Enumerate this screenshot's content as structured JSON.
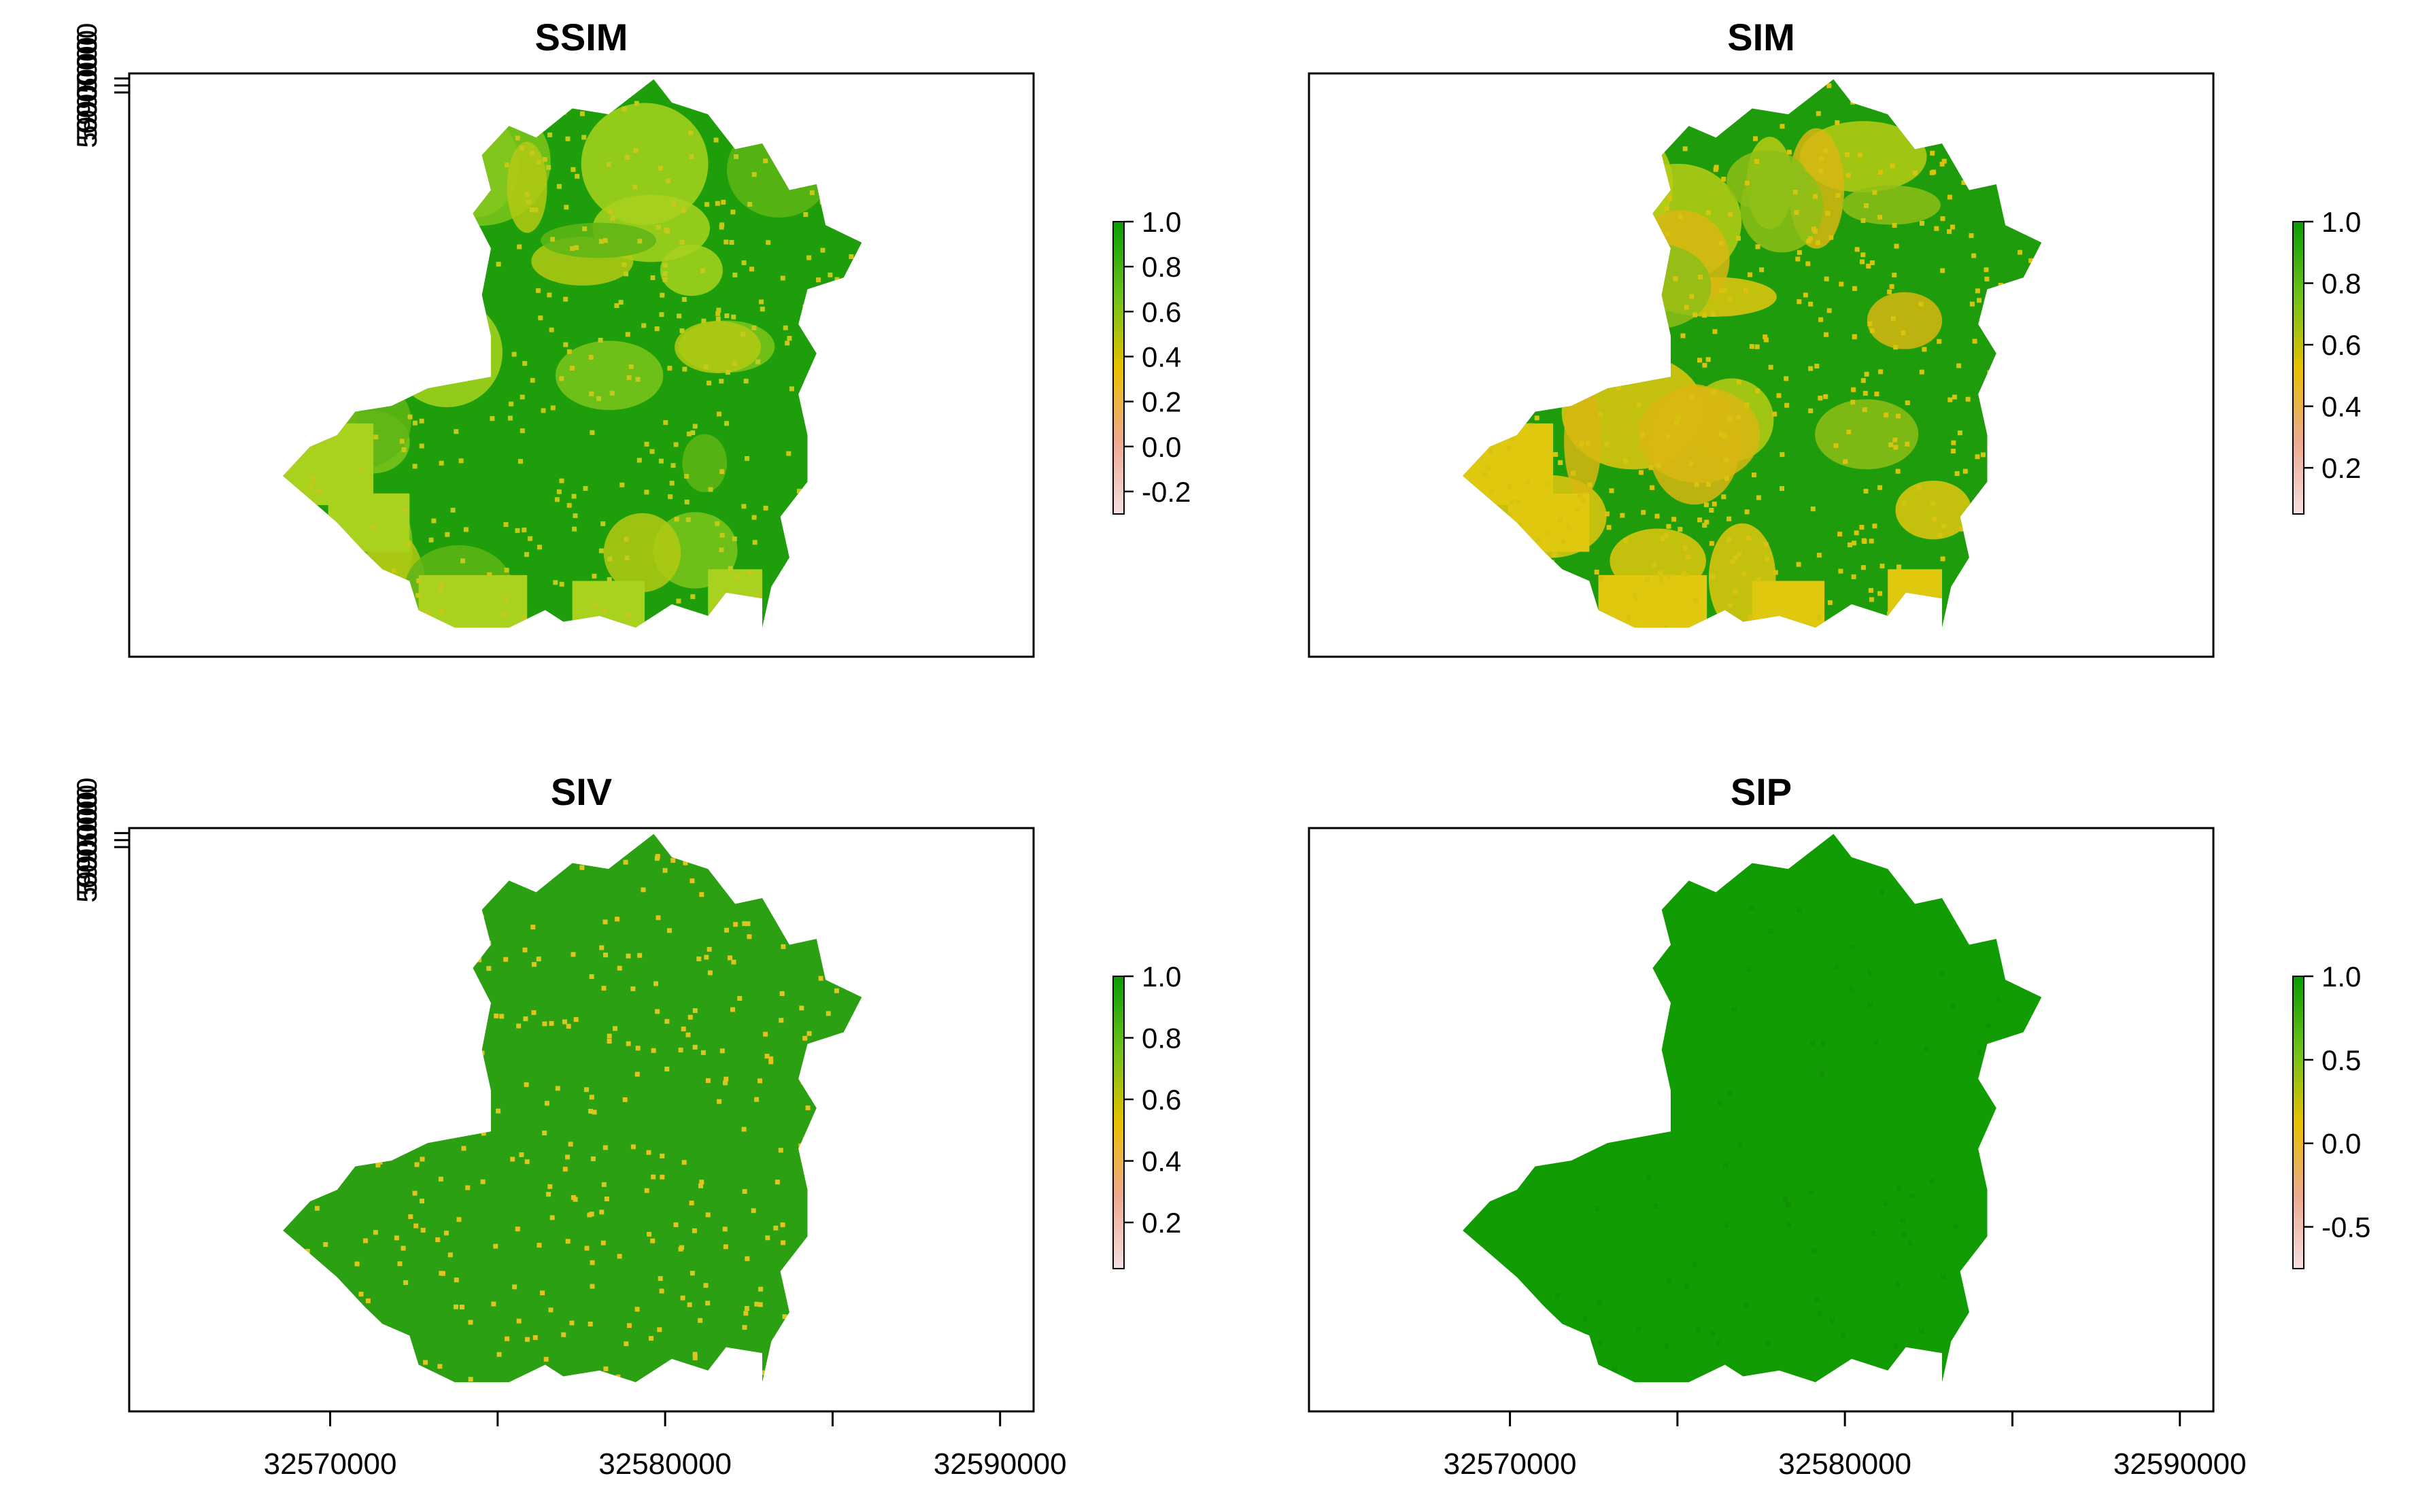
{
  "chart_data": [
    {
      "type": "heatmap",
      "title": "SSIM",
      "ylabel_ticks": [
        "5990000",
        "5995000",
        "6000000"
      ],
      "y_ticks": [
        5990000,
        5995000,
        6000000
      ],
      "xlim": [
        32564000,
        32591000
      ],
      "ylim": [
        5587500,
        6003600
      ],
      "legend": {
        "min": -0.3,
        "max": 1.0,
        "ticks": [
          -0.2,
          0.0,
          0.2,
          0.4,
          0.6,
          0.8,
          1.0
        ],
        "tick_labels": [
          "-0.2",
          "0.0",
          "0.2",
          "0.4",
          "0.6",
          "0.8",
          "1.0"
        ]
      },
      "base_color": "#1e9e0a",
      "patch_colors": [
        "#a8d21e",
        "#7cc61c",
        "#b4c914",
        "#5fb515"
      ],
      "speckle_color": "#c6c81a",
      "speckle_fraction": 0.18
    },
    {
      "type": "heatmap",
      "title": "SIM",
      "legend": {
        "min": 0.05,
        "max": 1.0,
        "ticks": [
          0.2,
          0.4,
          0.6,
          0.8,
          1.0
        ],
        "tick_labels": [
          "0.2",
          "0.4",
          "0.6",
          "0.8",
          "1.0"
        ]
      },
      "base_color": "#1f9c0b",
      "patch_colors": [
        "#e0c80f",
        "#b8cc15",
        "#d8b712",
        "#8dbe17"
      ],
      "speckle_color": "#d8c40f",
      "speckle_fraction": 0.22
    },
    {
      "type": "heatmap",
      "title": "SIV",
      "legend": {
        "min": 0.05,
        "max": 1.0,
        "ticks": [
          0.2,
          0.4,
          0.6,
          0.8,
          1.0
        ],
        "tick_labels": [
          "0.2",
          "0.4",
          "0.6",
          "0.8",
          "1.0"
        ]
      },
      "base_color": "#2aa012",
      "patch_colors": [],
      "speckle_color": "#e0c420",
      "speckle_fraction": 0.16
    },
    {
      "type": "heatmap",
      "title": "SIP",
      "legend": {
        "min": -0.75,
        "max": 1.0,
        "ticks": [
          -0.5,
          0.0,
          0.5,
          1.0
        ],
        "tick_labels": [
          "-0.5",
          "0.0",
          "0.5",
          "1.0"
        ]
      },
      "base_color": "#119c04",
      "patch_colors": [],
      "speckle_color": "#0f9204",
      "speckle_fraction": 0.05
    }
  ],
  "shared": {
    "x_ticks": [
      32570000,
      32575000,
      32580000,
      32585000,
      32590000
    ],
    "x_tick_labels": [
      "32570000",
      "",
      "32580000",
      "",
      "32590000"
    ],
    "ramp_colors": [
      "#f4dfe2",
      "#eea88e",
      "#e8c000",
      "#6cc21a",
      "#069d04"
    ]
  },
  "colors": {
    "frame": "#000000",
    "text": "#000000"
  }
}
